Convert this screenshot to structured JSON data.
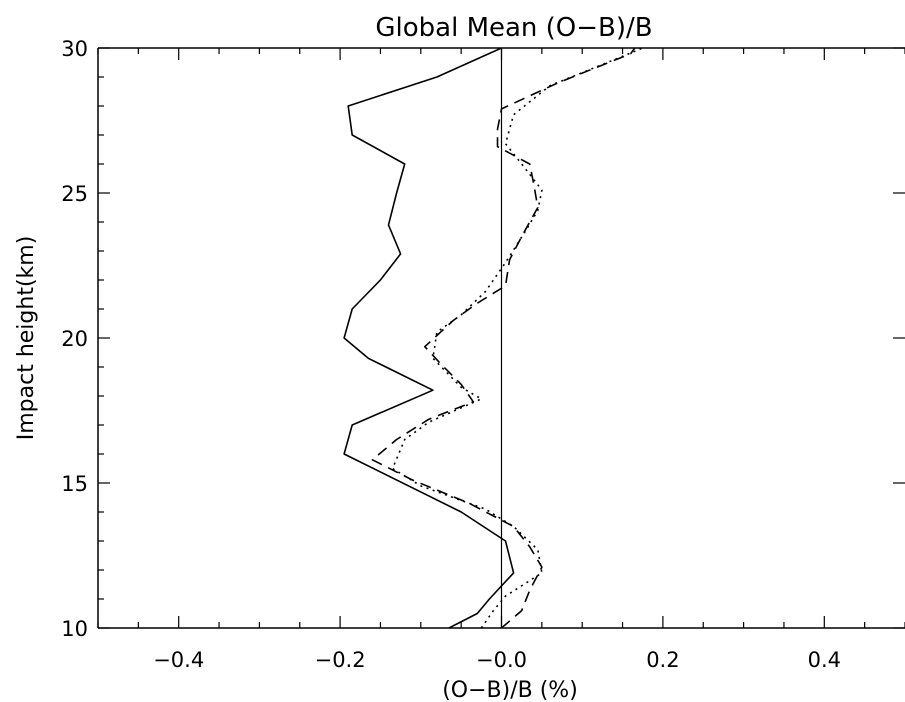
{
  "chart_data": {
    "type": "line",
    "title": "Global Mean (O−B)/B",
    "xlabel": "(O−B)/B (%)",
    "ylabel": "Impact height(km)",
    "xlim": [
      -0.5,
      0.5
    ],
    "ylim": [
      10,
      30
    ],
    "x_ticks": [
      -0.4,
      -0.2,
      0.0,
      0.2,
      0.4
    ],
    "x_tick_labels": [
      "−0.4",
      "−0.2",
      "−0.0",
      "0.2",
      "0.4"
    ],
    "y_ticks": [
      10,
      15,
      20,
      25,
      30
    ],
    "y_tick_labels": [
      "10",
      "15",
      "20",
      "25",
      "30"
    ],
    "reference_line_x": 0.0,
    "grid": false,
    "series": [
      {
        "style": "solid",
        "color": "#000000",
        "points": [
          [
            -0.065,
            10
          ],
          [
            -0.03,
            10.5
          ],
          [
            -0.015,
            11
          ],
          [
            0.015,
            11.9
          ],
          [
            0.005,
            13
          ],
          [
            -0.05,
            14
          ],
          [
            -0.195,
            16
          ],
          [
            -0.185,
            17
          ],
          [
            -0.085,
            18.2
          ],
          [
            -0.165,
            19.3
          ],
          [
            -0.195,
            20
          ],
          [
            -0.185,
            21
          ],
          [
            -0.15,
            22
          ],
          [
            -0.125,
            22.9
          ],
          [
            -0.14,
            23.9
          ],
          [
            -0.13,
            25
          ],
          [
            -0.12,
            26
          ],
          [
            -0.185,
            27
          ],
          [
            -0.19,
            28
          ],
          [
            -0.08,
            29
          ],
          [
            0.0,
            30
          ]
        ]
      },
      {
        "style": "dashed",
        "color": "#000000",
        "points": [
          [
            0.0,
            10
          ],
          [
            0.025,
            10.6
          ],
          [
            0.035,
            11.3
          ],
          [
            0.05,
            12.1
          ],
          [
            0.035,
            12.8
          ],
          [
            0.015,
            13.5
          ],
          [
            -0.04,
            14.3
          ],
          [
            -0.11,
            15.1
          ],
          [
            -0.16,
            15.8
          ],
          [
            -0.13,
            16.5
          ],
          [
            -0.09,
            17.2
          ],
          [
            -0.035,
            17.8
          ],
          [
            -0.05,
            18.4
          ],
          [
            -0.075,
            19.1
          ],
          [
            -0.095,
            19.7
          ],
          [
            -0.06,
            20.6
          ],
          [
            -0.03,
            21.2
          ],
          [
            0.005,
            21.8
          ],
          [
            0.01,
            22.7
          ],
          [
            0.025,
            23.5
          ],
          [
            0.045,
            24.5
          ],
          [
            0.04,
            25.3
          ],
          [
            0.035,
            26
          ],
          [
            -0.005,
            26.6
          ],
          [
            -0.005,
            27.2
          ],
          [
            0.0,
            27.9
          ],
          [
            0.07,
            28.8
          ],
          [
            0.16,
            29.8
          ],
          [
            0.165,
            30
          ]
        ]
      },
      {
        "style": "dotted",
        "color": "#000000",
        "points": [
          [
            -0.025,
            10
          ],
          [
            -0.01,
            10.6
          ],
          [
            0.005,
            11.1
          ],
          [
            0.05,
            11.9
          ],
          [
            0.045,
            12.7
          ],
          [
            0.015,
            13.5
          ],
          [
            -0.02,
            14.1
          ],
          [
            -0.1,
            14.9
          ],
          [
            -0.135,
            15.5
          ],
          [
            -0.12,
            16.5
          ],
          [
            -0.09,
            17.1
          ],
          [
            -0.025,
            17.9
          ],
          [
            -0.05,
            18.3
          ],
          [
            -0.085,
            19.3
          ],
          [
            -0.08,
            20.2
          ],
          [
            -0.05,
            20.8
          ],
          [
            -0.02,
            21.6
          ],
          [
            0.005,
            22.6
          ],
          [
            0.03,
            23.7
          ],
          [
            0.045,
            24.4
          ],
          [
            0.05,
            25.1
          ],
          [
            0.025,
            26
          ],
          [
            0.005,
            26.7
          ],
          [
            0.015,
            27.7
          ],
          [
            0.06,
            28.7
          ],
          [
            0.14,
            29.6
          ],
          [
            0.175,
            30
          ]
        ]
      }
    ]
  }
}
